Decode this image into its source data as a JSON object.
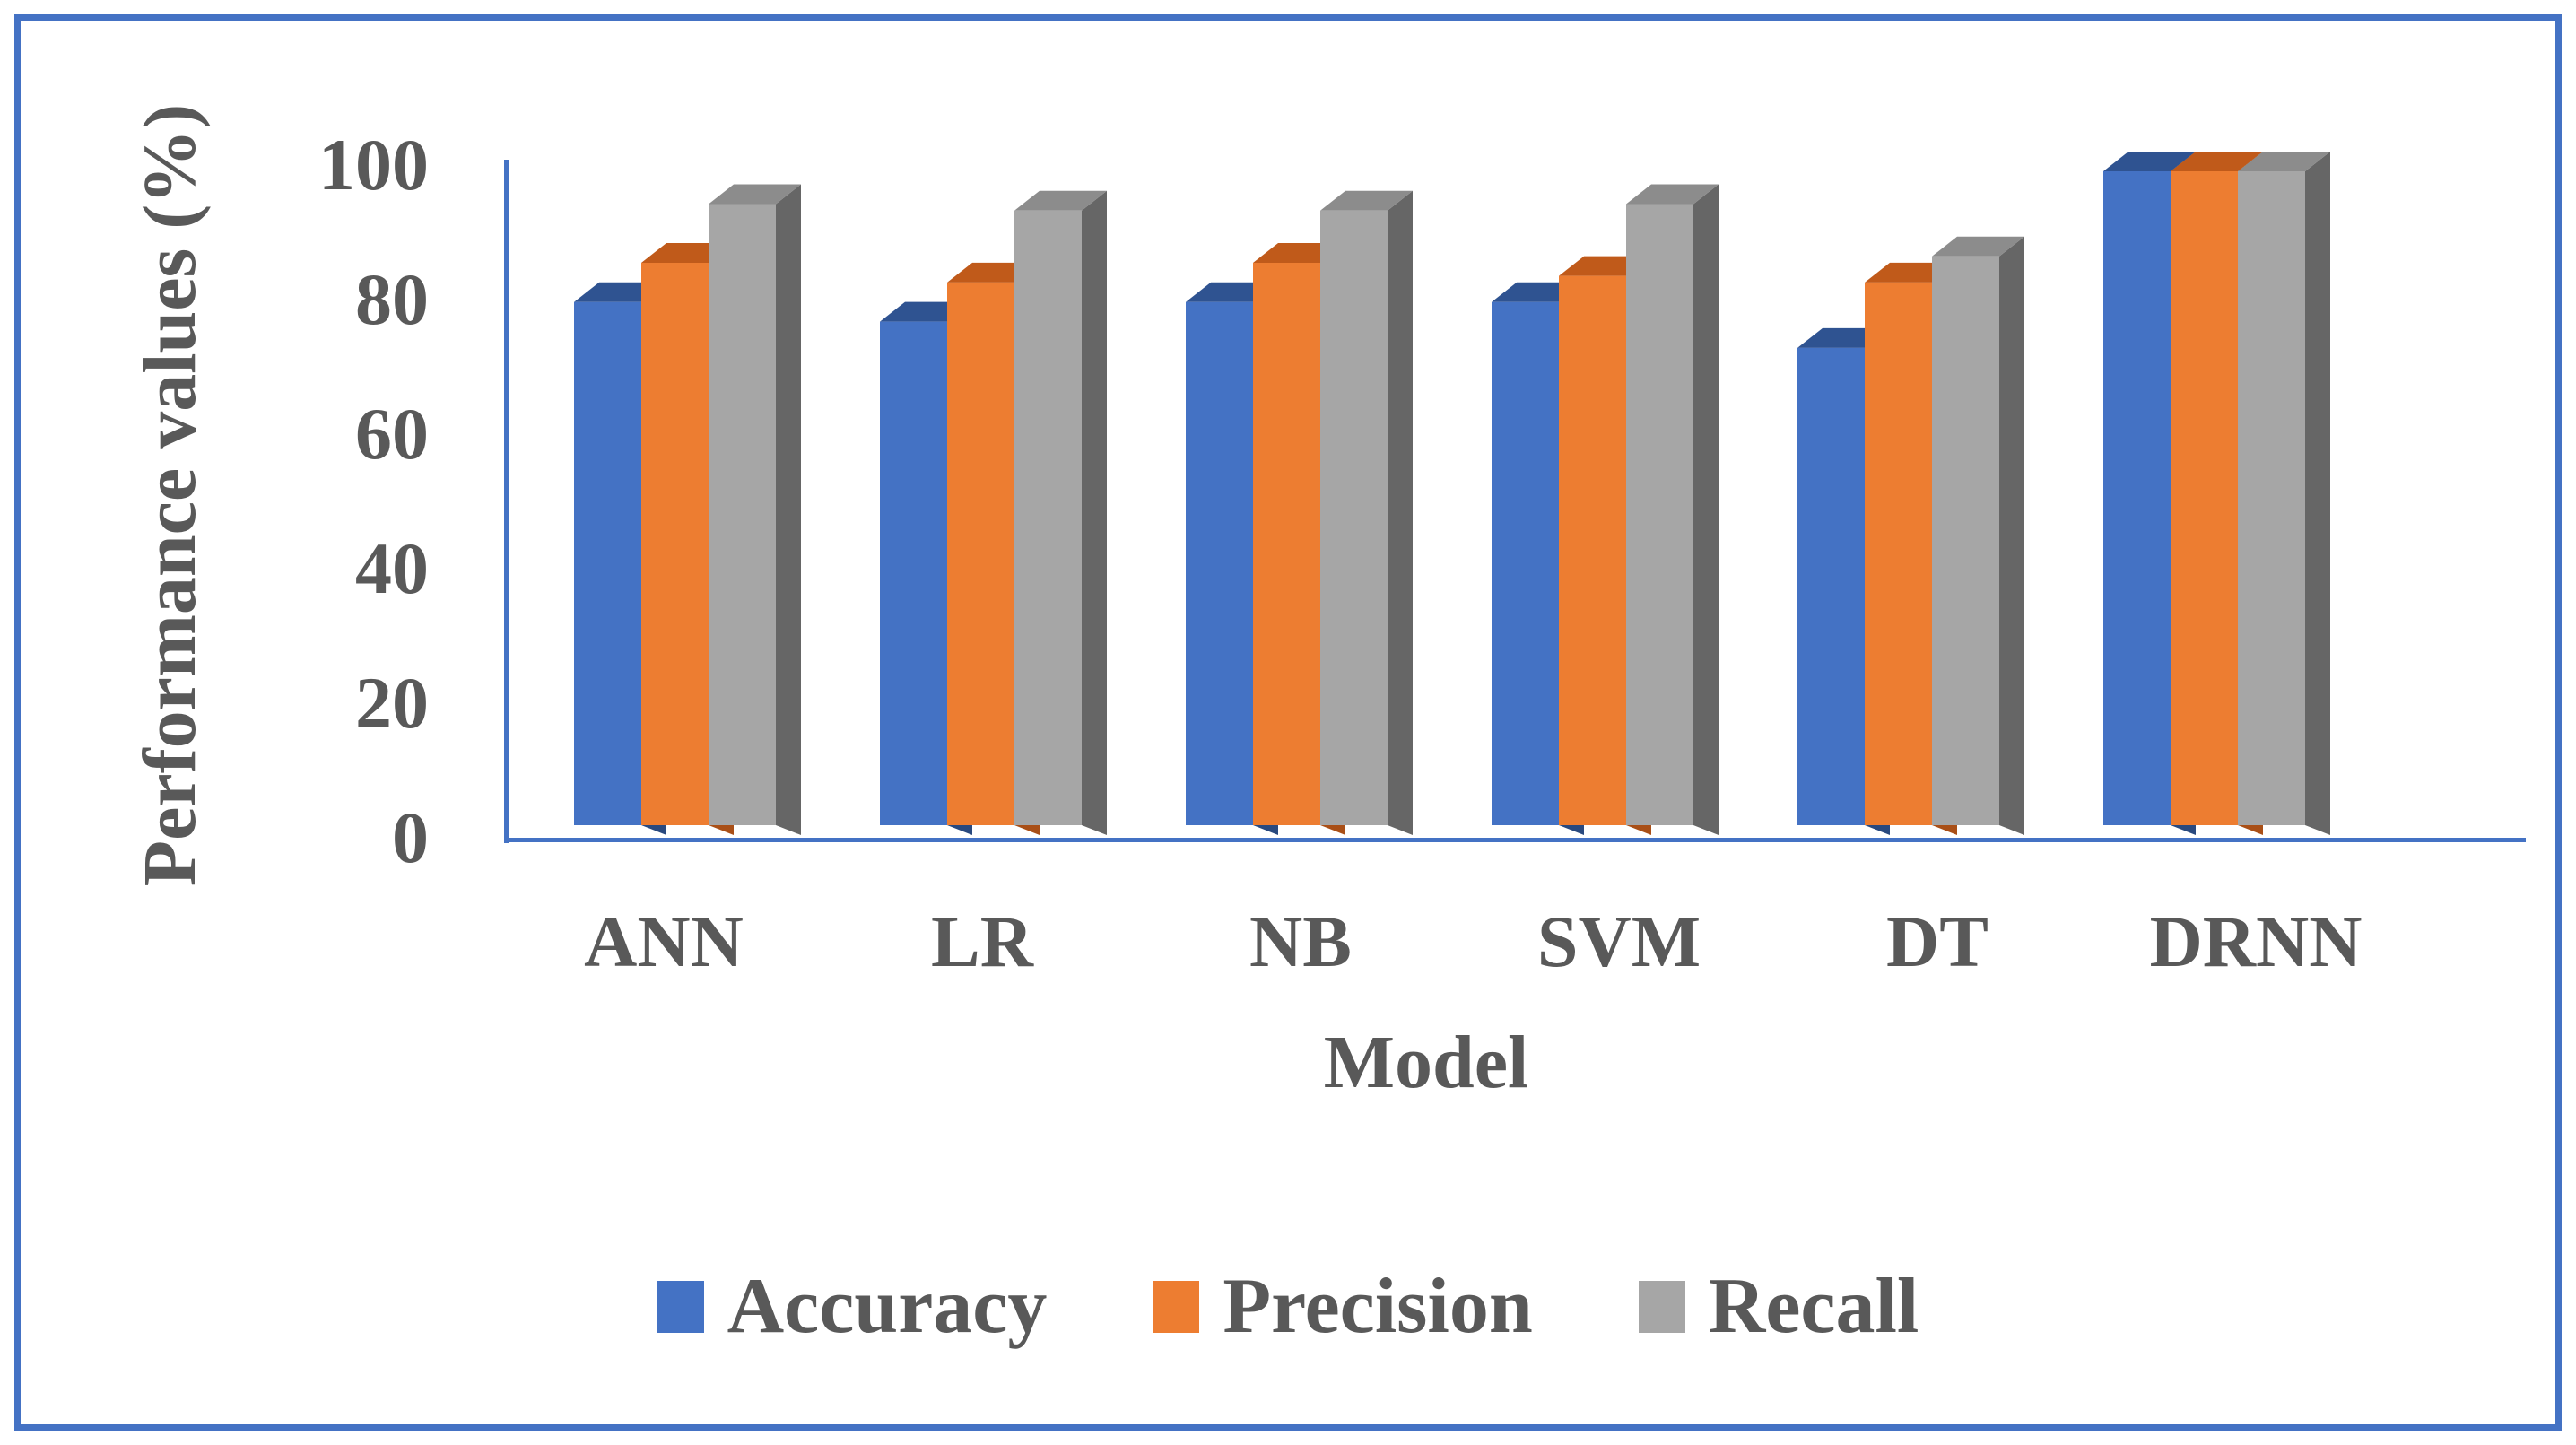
{
  "figure": {
    "background": "#ffffff",
    "border_color": "#4472C4",
    "axis_color": "#4472C4",
    "text_color": "#595959"
  },
  "chart_data": {
    "type": "bar",
    "subtype": "3d-clustered-column",
    "title": "",
    "xlabel": "Model",
    "ylabel": "Performance values (%)",
    "categories": [
      "ANN",
      "LR",
      "NB",
      "SVM",
      "DT",
      "DRNN"
    ],
    "series": [
      {
        "name": "Accuracy",
        "color": "#4472C4",
        "color_top": "#2F5391",
        "color_side": "#29497F",
        "values": [
          80,
          77,
          80,
          80,
          73,
          100
        ]
      },
      {
        "name": "Precision",
        "color": "#ED7D31",
        "color_top": "#C05A1A",
        "color_side": "#A94F17",
        "values": [
          86,
          83,
          86,
          84,
          83,
          100
        ]
      },
      {
        "name": "Recall",
        "color": "#A6A6A6",
        "color_top": "#8C8C8C",
        "color_side": "#666666",
        "values": [
          95,
          94,
          94,
          95,
          87,
          100
        ]
      }
    ],
    "ylim": [
      0,
      100
    ],
    "y_ticks": [
      0,
      20,
      40,
      60,
      80,
      100
    ],
    "grid": false,
    "legend_position": "bottom"
  }
}
